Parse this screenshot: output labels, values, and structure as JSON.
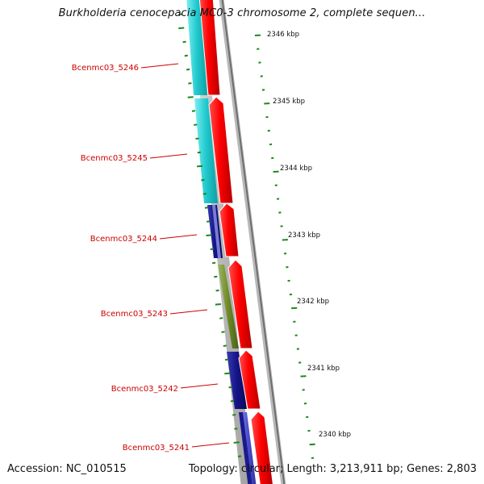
{
  "title": "Burkholderia cenocepacia MC0-3 chromosome 2, complete sequen...",
  "footer": {
    "accession": "Accession: NC_010515",
    "summary": "Topology: circular; Length: 3,213,911 bp; Genes: 2,803"
  },
  "ruler": {
    "labels": [
      "2346 kbp",
      "2345 kbp",
      "2344 kbp",
      "2343 kbp",
      "2342 kbp",
      "2341 kbp",
      "2340 kbp"
    ]
  },
  "genes": [
    {
      "label": "Bcenmc03_5246",
      "strand": "reverse"
    },
    {
      "label": "Bcenmc03_5245",
      "strand": "reverse"
    },
    {
      "label": "Bcenmc03_5244",
      "strand": "reverse"
    },
    {
      "label": "Bcenmc03_5243",
      "strand": "reverse"
    },
    {
      "label": "Bcenmc03_5242",
      "strand": "reverse"
    },
    {
      "label": "Bcenmc03_5241",
      "strand": "reverse"
    }
  ],
  "colors": {
    "gene_label": "#cc0000",
    "tick": "#1a8a1a",
    "forward_feature": "#ee0000",
    "cog_cyan": "#22c8cc",
    "cog_navy": "#1a1a8c",
    "cog_olive": "#6e8a28",
    "backbone": "#888888"
  },
  "icons": [
    "feature-arrow-icon"
  ]
}
